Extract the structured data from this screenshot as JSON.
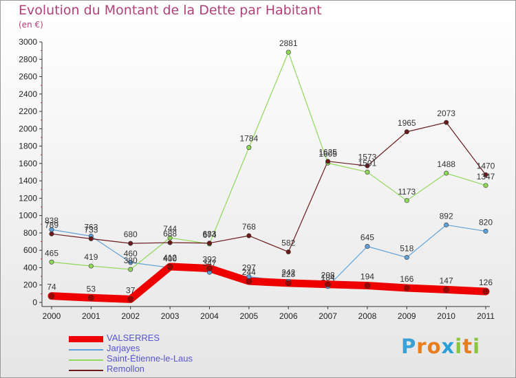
{
  "title": "Evolution du Montant de la Dette par Habitant",
  "subtitle": "(en €)",
  "brand": {
    "letters": [
      "P",
      "r",
      "o",
      "x",
      "i",
      "t",
      "i"
    ],
    "colors": [
      "#3aa0d8",
      "#e87d1e",
      "#e87d1e",
      "#2aa0d8",
      "#8bc53f",
      "#e87d1e",
      "#8bc53f"
    ]
  },
  "chart_data": {
    "type": "line",
    "title": "Evolution du Montant de la Dette par Habitant",
    "ylabel": "(en €)",
    "xlabel": "",
    "x": [
      "2000",
      "2001",
      "2002",
      "2003",
      "2004",
      "2005",
      "2006",
      "2007",
      "2008",
      "2009",
      "2010",
      "2011"
    ],
    "ylim": [
      0,
      3000
    ],
    "yticks": [
      "0",
      "200",
      "400",
      "600",
      "800",
      "1000",
      "1200",
      "1400",
      "1600",
      "1800",
      "2000",
      "2200",
      "2400",
      "2600",
      "2800",
      "3000"
    ],
    "grid": false,
    "legend": "bottom-left",
    "series": [
      {
        "name": "VALSERRES",
        "color": "#ee0000",
        "values": [
          74,
          53,
          37,
          412,
          392,
          244,
          223,
          208,
          194,
          166,
          147,
          126
        ]
      },
      {
        "name": "Jarjayes",
        "color": "#5fa0d8",
        "values": [
          838,
          763,
          460,
          400,
          347,
          297,
          242,
          184,
          645,
          518,
          892,
          820
        ]
      },
      {
        "name": "Saint-Étienne-le-Laus",
        "color": "#8fd85a",
        "values": [
          465,
          419,
          380,
          744,
          674,
          1784,
          2881,
          1605,
          1501,
          1173,
          1488,
          1347
        ]
      },
      {
        "name": "Remollon",
        "color": "#6b1a1a",
        "values": [
          789,
          733,
          680,
          688,
          683,
          768,
          582,
          1625,
          1573,
          1965,
          2073,
          1470
        ]
      }
    ]
  }
}
